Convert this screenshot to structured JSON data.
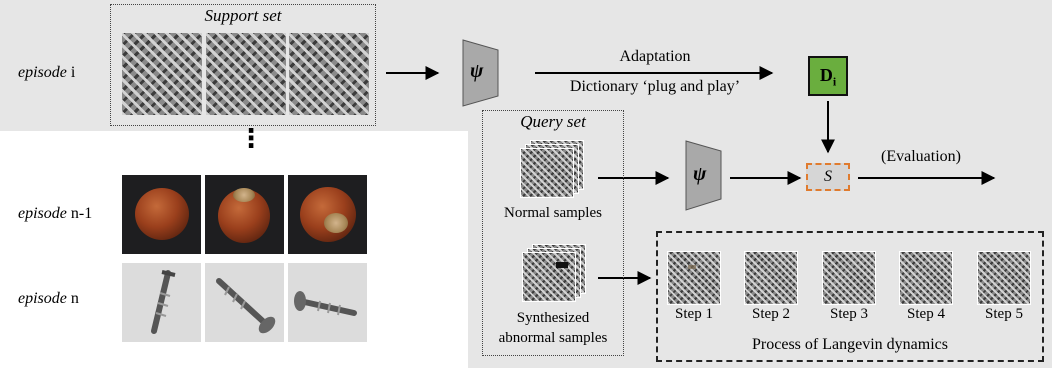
{
  "support_set": {
    "title": "Support set"
  },
  "episodes": {
    "i": {
      "word": "episode",
      "suffix": "i"
    },
    "n_minus_1": {
      "word": "episode",
      "suffix": "n-1"
    },
    "n": {
      "word": "episode",
      "suffix": "n"
    }
  },
  "ellipsis": "⋮",
  "encoder": {
    "symbol": "ψ"
  },
  "adaptation": {
    "line1": "Adaptation",
    "line2": "Dictionary ‘plug and play’"
  },
  "dictionary": {
    "main": "D",
    "sub": "i"
  },
  "query_set": {
    "title": "Query set",
    "normal": "Normal samples",
    "abnormal_line1": "Synthesized",
    "abnormal_line2": "abnormal samples"
  },
  "score": {
    "symbol": "S"
  },
  "evaluation": "(Evaluation)",
  "langevin": {
    "steps": [
      "Step 1",
      "Step 2",
      "Step 3",
      "Step 4",
      "Step 5"
    ],
    "caption": "Process of Langevin dynamics"
  },
  "colors": {
    "dictionary_fill": "#6aae3e",
    "score_border": "#e07b2e",
    "panel_background": "#e6e6e6"
  }
}
